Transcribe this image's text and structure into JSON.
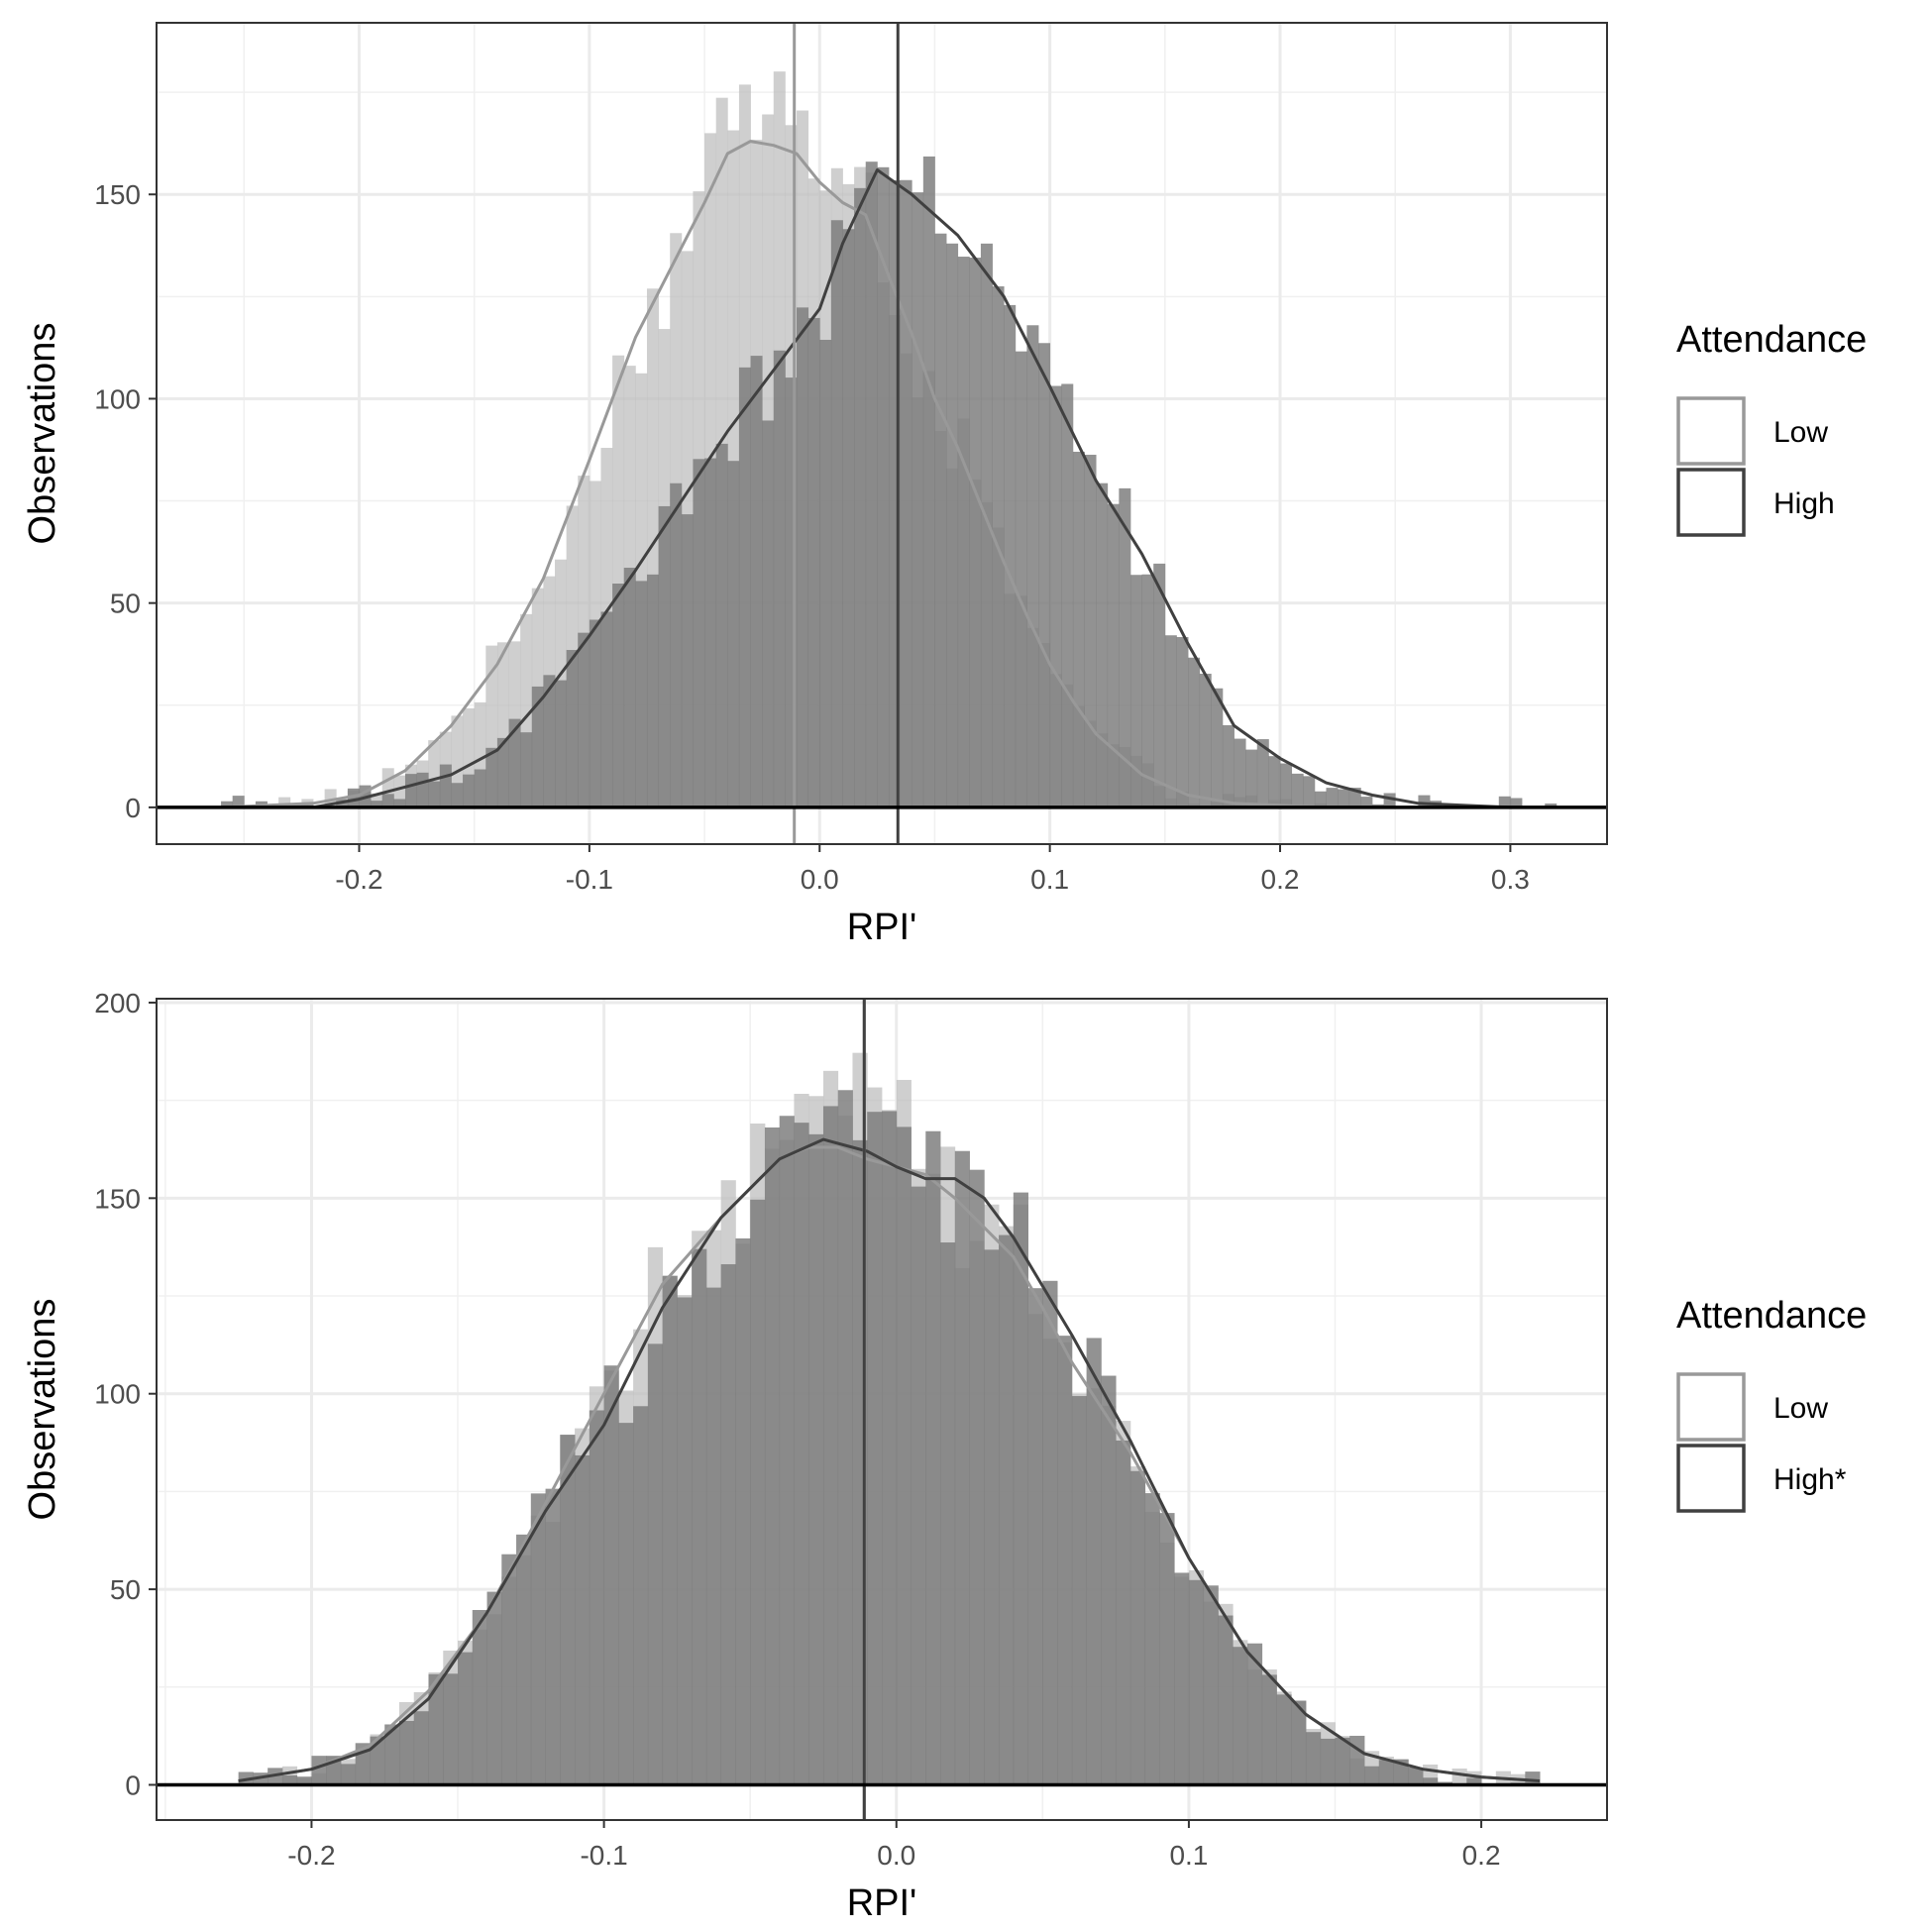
{
  "chart_data": [
    {
      "type": "histogram",
      "xlabel": "RPI'",
      "ylabel": "Observations",
      "xlim": [
        -0.288,
        0.342
      ],
      "ylim": [
        -9,
        192
      ],
      "x_ticks": [
        -0.2,
        -0.1,
        0.0,
        0.1,
        0.2,
        0.3
      ],
      "x_tick_labels": [
        "-0.2",
        "-0.1",
        "0.0",
        "0.1",
        "0.2",
        "0.3"
      ],
      "y_ticks": [
        0,
        50,
        100,
        150
      ],
      "y_tick_labels": [
        "0",
        "50",
        "100",
        "150"
      ],
      "grid": true,
      "legend": {
        "title": "Attendance",
        "position": "right",
        "entries": [
          "Low",
          "High"
        ]
      },
      "series": [
        {
          "name": "Low",
          "mean": -0.011,
          "color": "#999999",
          "fill": "#bdbdbd",
          "histogram_peak": 183,
          "density_curve": [
            [
              -0.26,
              0
            ],
            [
              -0.22,
              1
            ],
            [
              -0.2,
              3
            ],
            [
              -0.18,
              9
            ],
            [
              -0.16,
              20
            ],
            [
              -0.14,
              35
            ],
            [
              -0.12,
              56
            ],
            [
              -0.1,
              85
            ],
            [
              -0.08,
              115
            ],
            [
              -0.06,
              137
            ],
            [
              -0.05,
              148
            ],
            [
              -0.04,
              160
            ],
            [
              -0.03,
              163
            ],
            [
              -0.02,
              162
            ],
            [
              -0.01,
              160
            ],
            [
              0.0,
              153
            ],
            [
              0.01,
              148
            ],
            [
              0.02,
              145
            ],
            [
              0.03,
              130
            ],
            [
              0.04,
              116
            ],
            [
              0.05,
              100
            ],
            [
              0.06,
              88
            ],
            [
              0.07,
              74
            ],
            [
              0.08,
              60
            ],
            [
              0.09,
              47
            ],
            [
              0.1,
              35
            ],
            [
              0.11,
              26
            ],
            [
              0.12,
              18
            ],
            [
              0.14,
              8
            ],
            [
              0.16,
              3
            ],
            [
              0.18,
              1
            ],
            [
              0.22,
              0
            ]
          ]
        },
        {
          "name": "High",
          "mean": 0.034,
          "color": "#404040",
          "fill": "#7a7a7a",
          "histogram_peak": 166,
          "density_curve": [
            [
              -0.26,
              0
            ],
            [
              -0.22,
              0
            ],
            [
              -0.2,
              2
            ],
            [
              -0.18,
              5
            ],
            [
              -0.16,
              8
            ],
            [
              -0.14,
              14
            ],
            [
              -0.12,
              27
            ],
            [
              -0.1,
              42
            ],
            [
              -0.08,
              58
            ],
            [
              -0.06,
              75
            ],
            [
              -0.04,
              92
            ],
            [
              -0.02,
              107
            ],
            [
              0.0,
              122
            ],
            [
              0.01,
              138
            ],
            [
              0.02,
              150
            ],
            [
              0.025,
              156
            ],
            [
              0.04,
              150
            ],
            [
              0.06,
              140
            ],
            [
              0.08,
              125
            ],
            [
              0.1,
              103
            ],
            [
              0.12,
              80
            ],
            [
              0.14,
              62
            ],
            [
              0.16,
              40
            ],
            [
              0.18,
              20
            ],
            [
              0.2,
              12
            ],
            [
              0.22,
              6
            ],
            [
              0.24,
              3
            ],
            [
              0.26,
              1
            ],
            [
              0.3,
              0
            ],
            [
              0.32,
              0
            ]
          ]
        }
      ]
    },
    {
      "type": "histogram",
      "xlabel": "RPI'",
      "ylabel": "Observations",
      "xlim": [
        -0.253,
        0.243
      ],
      "ylim": [
        -9,
        201
      ],
      "x_ticks": [
        -0.2,
        -0.1,
        0.0,
        0.1,
        0.2
      ],
      "x_tick_labels": [
        "-0.2",
        "-0.1",
        "0.0",
        "0.1",
        "0.2"
      ],
      "y_ticks": [
        0,
        50,
        100,
        150,
        200
      ],
      "y_tick_labels": [
        "0",
        "50",
        "100",
        "150",
        "200"
      ],
      "grid": true,
      "legend": {
        "title": "Attendance",
        "position": "right",
        "entries": [
          "Low",
          "High*"
        ]
      },
      "series": [
        {
          "name": "Low",
          "mean": -0.011,
          "color": "#999999",
          "fill": "#bdbdbd",
          "histogram_peak": 192,
          "density_curve": [
            [
              -0.225,
              1
            ],
            [
              -0.2,
              4
            ],
            [
              -0.18,
              10
            ],
            [
              -0.16,
              24
            ],
            [
              -0.14,
              44
            ],
            [
              -0.12,
              72
            ],
            [
              -0.1,
              100
            ],
            [
              -0.08,
              128
            ],
            [
              -0.06,
              145
            ],
            [
              -0.04,
              160
            ],
            [
              -0.03,
              163
            ],
            [
              -0.02,
              163
            ],
            [
              -0.01,
              160
            ],
            [
              0.0,
              158
            ],
            [
              0.01,
              156
            ],
            [
              0.02,
              150
            ],
            [
              0.04,
              135
            ],
            [
              0.05,
              122
            ],
            [
              0.06,
              108
            ],
            [
              0.08,
              85
            ],
            [
              0.1,
              58
            ],
            [
              0.12,
              34
            ],
            [
              0.14,
              18
            ],
            [
              0.16,
              8
            ],
            [
              0.18,
              4
            ],
            [
              0.2,
              2
            ],
            [
              0.22,
              1
            ]
          ]
        },
        {
          "name": "High*",
          "mean": -0.011,
          "color": "#404040",
          "fill": "#7a7a7a",
          "histogram_peak": 180,
          "density_curve": [
            [
              -0.225,
              1
            ],
            [
              -0.2,
              4
            ],
            [
              -0.18,
              9
            ],
            [
              -0.16,
              22
            ],
            [
              -0.14,
              44
            ],
            [
              -0.12,
              70
            ],
            [
              -0.1,
              92
            ],
            [
              -0.08,
              122
            ],
            [
              -0.06,
              145
            ],
            [
              -0.04,
              160
            ],
            [
              -0.025,
              165
            ],
            [
              -0.01,
              162
            ],
            [
              0.0,
              158
            ],
            [
              0.01,
              155
            ],
            [
              0.02,
              155
            ],
            [
              0.03,
              150
            ],
            [
              0.04,
              140
            ],
            [
              0.06,
              115
            ],
            [
              0.08,
              88
            ],
            [
              0.1,
              58
            ],
            [
              0.12,
              34
            ],
            [
              0.14,
              18
            ],
            [
              0.16,
              8
            ],
            [
              0.18,
              4
            ],
            [
              0.2,
              2
            ],
            [
              0.22,
              1
            ]
          ]
        }
      ]
    }
  ]
}
